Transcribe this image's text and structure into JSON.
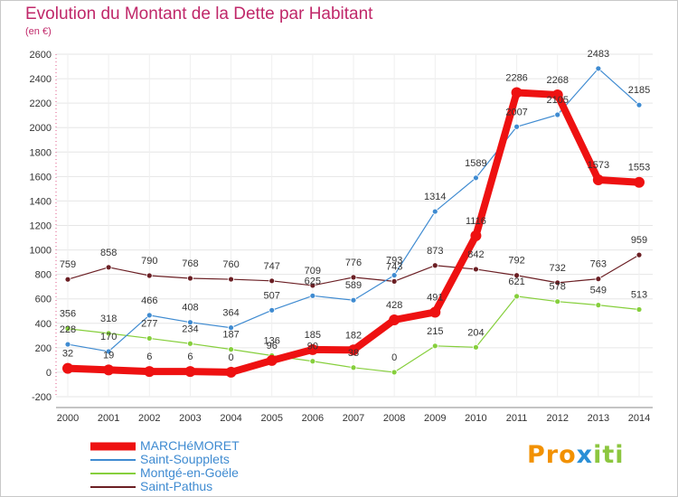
{
  "chart_data": {
    "type": "line",
    "title": "Evolution du Montant de la Dette par Habitant",
    "subtitle": "(en €)",
    "x": [
      "2000",
      "2001",
      "2002",
      "2003",
      "2004",
      "2005",
      "2006",
      "2007",
      "2008",
      "2009",
      "2010",
      "2011",
      "2012",
      "2013",
      "2014"
    ],
    "ylim": [
      -200,
      2600
    ],
    "yticks": [
      -200,
      0,
      200,
      400,
      600,
      800,
      1000,
      1200,
      1400,
      1600,
      1800,
      2000,
      2200,
      2400,
      2600
    ],
    "grid": true,
    "legend_position": "bottom-left",
    "series": [
      {
        "name": "MARCHéMORET",
        "color": "#ee1111",
        "values": [
          32,
          19,
          6,
          6,
          0,
          96,
          185,
          182,
          428,
          491,
          1116,
          2286,
          2268,
          1573,
          1553
        ],
        "labels": [
          "32",
          "19",
          "6",
          "6",
          "0",
          "96",
          "185",
          "182",
          "428",
          "491",
          "1116",
          "2286",
          "2268",
          "1573",
          "1553"
        ]
      },
      {
        "name": "Saint-Soupplets",
        "color": "#3f8bd1",
        "values": [
          228,
          170,
          466,
          408,
          364,
          507,
          625,
          589,
          793,
          1314,
          1589,
          2007,
          2105,
          2483,
          2185
        ],
        "labels": [
          "228",
          "170",
          "466",
          "408",
          "364",
          "507",
          "625",
          "589",
          "793",
          "1314",
          "1589",
          "2007",
          "2105",
          "2483",
          "2185"
        ]
      },
      {
        "name": "Montgé-en-Goële",
        "color": "#86cf3c",
        "values": [
          356,
          318,
          277,
          234,
          187,
          136,
          90,
          38,
          0,
          215,
          204,
          621,
          578,
          549,
          513
        ],
        "labels": [
          "356",
          "318",
          "277",
          "234",
          "187",
          "136",
          "90",
          "38",
          "0",
          "215",
          "204",
          "621",
          "578",
          "549",
          "513"
        ]
      },
      {
        "name": "Saint-Pathus",
        "color": "#6b1f24",
        "values": [
          759,
          858,
          790,
          768,
          760,
          747,
          709,
          776,
          743,
          873,
          842,
          792,
          732,
          763,
          959
        ],
        "labels": [
          "759",
          "858",
          "790",
          "768",
          "760",
          "747",
          "709",
          "776",
          "743",
          "873",
          "842",
          "792",
          "732",
          "763",
          "959"
        ]
      }
    ]
  },
  "logo": {
    "part1": "Pro",
    "part2": "x",
    "part3": "iti"
  }
}
